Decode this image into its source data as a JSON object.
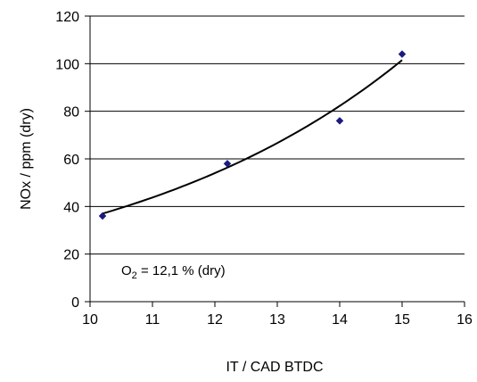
{
  "chart_data": {
    "type": "scatter",
    "xlabel": "IT / CAD BTDC",
    "ylabel": "NOx / ppm (dry)",
    "xlim": [
      10,
      16
    ],
    "ylim": [
      0,
      120
    ],
    "x_ticks": [
      "10",
      "11",
      "12",
      "13",
      "14",
      "15",
      "16"
    ],
    "y_ticks": [
      "0",
      "20",
      "40",
      "60",
      "80",
      "100",
      "120"
    ],
    "grid": "horizontal",
    "legend": "none",
    "series": [
      {
        "marker": "diamond",
        "color": "#1a1a80",
        "x": [
          10.2,
          12.2,
          14.0,
          15.0
        ],
        "y": [
          36,
          58,
          76,
          104
        ]
      }
    ],
    "trendline": {
      "type": "exponential",
      "color": "#000000",
      "x_start": 10.2,
      "x_end": 15.0,
      "y_start": 37,
      "y_end": 101.5
    },
    "annotation": {
      "prefix": "O",
      "subscript": "2",
      "suffix": " = 12,1 % (dry)"
    }
  }
}
